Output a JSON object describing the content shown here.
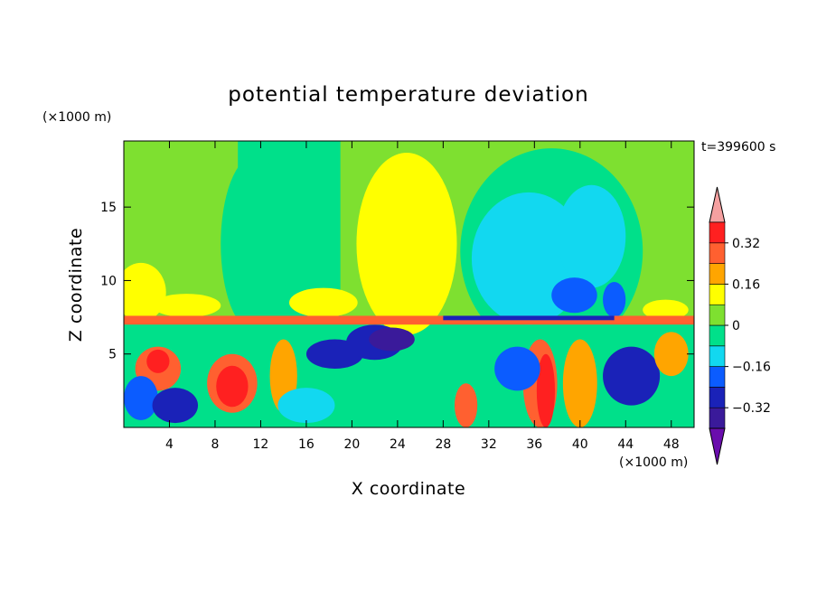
{
  "chart_data": {
    "type": "heatmap",
    "title": "potential temperature deviation",
    "xlabel": "X coordinate",
    "ylabel": "Z coordinate",
    "x_units": "(×1000 m)",
    "y_units": "(×1000 m)",
    "time_label": "t=399600 s",
    "xlim": [
      0,
      50
    ],
    "ylim": [
      0,
      19.5
    ],
    "x_ticks": [
      4,
      8,
      12,
      16,
      20,
      24,
      28,
      32,
      36,
      40,
      44,
      48
    ],
    "y_ticks": [
      5,
      10,
      15
    ],
    "colorbar": {
      "labels": [
        "0.32",
        "0.16",
        "0",
        "−0.16",
        "−0.32"
      ],
      "label_values": [
        0.32,
        0.16,
        0,
        -0.16,
        -0.32
      ],
      "levels": [
        -0.4,
        -0.32,
        -0.24,
        -0.16,
        -0.08,
        0,
        0.08,
        0.16,
        0.24,
        0.32,
        0.4
      ],
      "colors": [
        "#6a0dad",
        "#3a1a9a",
        "#1a22b8",
        "#0b5cff",
        "#12d8f0",
        "#00e08a",
        "#7ee030",
        "#ffff00",
        "#ffa500",
        "#ff6030",
        "#ff2020",
        "#f5a0a0"
      ]
    },
    "fields": {
      "upper_regions": [
        {
          "x": [
            0,
            10
          ],
          "z": [
            7.5,
            19.5
          ],
          "value": 0.04
        },
        {
          "x": [
            10,
            19
          ],
          "z": [
            7.5,
            19.5
          ],
          "value": -0.04
        },
        {
          "x": [
            19,
            30
          ],
          "z": [
            7.5,
            19.5
          ],
          "value": 0.04
        },
        {
          "x": [
            30,
            50
          ],
          "z": [
            7.5,
            19.5
          ],
          "value": 0.04
        }
      ],
      "blobs": [
        {
          "x": 1.5,
          "z": 9.2,
          "rx": 2.2,
          "rz": 2.0,
          "value": 0.12
        },
        {
          "x": 5.5,
          "z": 8.3,
          "rx": 3.0,
          "rz": 0.8,
          "value": 0.12
        },
        {
          "x": 11.5,
          "z": 12.5,
          "rx": 3.0,
          "rz": 6.0,
          "value": -0.04
        },
        {
          "x": 24.8,
          "z": 12.5,
          "rx": 4.4,
          "rz": 6.2,
          "value": 0.12
        },
        {
          "x": 17.5,
          "z": 8.5,
          "rx": 3.0,
          "rz": 1.0,
          "value": 0.12
        },
        {
          "x": 37.5,
          "z": 12.0,
          "rx": 8.0,
          "rz": 7.0,
          "value": -0.04
        },
        {
          "x": 35.5,
          "z": 11.5,
          "rx": 5.0,
          "rz": 4.5,
          "value": -0.12
        },
        {
          "x": 41.0,
          "z": 13.0,
          "rx": 3.0,
          "rz": 3.5,
          "value": -0.12
        },
        {
          "x": 39.5,
          "z": 9.0,
          "rx": 2.0,
          "rz": 1.2,
          "value": -0.2
        },
        {
          "x": 43.0,
          "z": 8.7,
          "rx": 1.0,
          "rz": 1.2,
          "value": -0.2
        },
        {
          "x": 47.5,
          "z": 8.0,
          "rx": 2.0,
          "rz": 0.7,
          "value": 0.12
        },
        {
          "x": 9.5,
          "z": 3.0,
          "rx": 2.2,
          "rz": 2.0,
          "value": 0.28
        },
        {
          "x": 9.5,
          "z": 2.8,
          "rx": 1.4,
          "rz": 1.4,
          "value": 0.36
        },
        {
          "x": 3.0,
          "z": 4.0,
          "rx": 2.0,
          "rz": 1.5,
          "value": 0.28
        },
        {
          "x": 3.0,
          "z": 4.5,
          "rx": 1.0,
          "rz": 0.8,
          "value": 0.36
        },
        {
          "x": 14.0,
          "z": 3.5,
          "rx": 1.2,
          "rz": 2.5,
          "value": 0.2
        },
        {
          "x": 18.5,
          "z": 5.0,
          "rx": 2.5,
          "rz": 1.0,
          "value": -0.28
        },
        {
          "x": 22.0,
          "z": 5.8,
          "rx": 2.5,
          "rz": 1.2,
          "value": -0.28
        },
        {
          "x": 23.5,
          "z": 6.0,
          "rx": 2.0,
          "rz": 0.8,
          "value": -0.36
        },
        {
          "x": 30.0,
          "z": 1.5,
          "rx": 1.0,
          "rz": 1.5,
          "value": 0.28
        },
        {
          "x": 36.5,
          "z": 3.0,
          "rx": 1.5,
          "rz": 3.0,
          "value": 0.28
        },
        {
          "x": 37.0,
          "z": 2.5,
          "rx": 0.8,
          "rz": 2.5,
          "value": 0.36
        },
        {
          "x": 40.0,
          "z": 3.0,
          "rx": 1.5,
          "rz": 3.0,
          "value": 0.2
        },
        {
          "x": 44.5,
          "z": 3.5,
          "rx": 2.5,
          "rz": 2.0,
          "value": -0.28
        },
        {
          "x": 34.5,
          "z": 4.0,
          "rx": 2.0,
          "rz": 1.5,
          "value": -0.2
        },
        {
          "x": 1.5,
          "z": 2.0,
          "rx": 1.5,
          "rz": 1.5,
          "value": -0.2
        },
        {
          "x": 4.5,
          "z": 1.5,
          "rx": 2.0,
          "rz": 1.2,
          "value": -0.28
        },
        {
          "x": 48.0,
          "z": 5.0,
          "rx": 1.5,
          "rz": 1.5,
          "value": 0.2
        },
        {
          "x": 26.0,
          "z": 2.0,
          "rx": 2.0,
          "rz": 1.5,
          "value": -0.04
        },
        {
          "x": 16.0,
          "z": 1.5,
          "rx": 2.5,
          "rz": 1.2,
          "value": -0.12
        }
      ],
      "tropopause_band": {
        "x": [
          0,
          50
        ],
        "z": [
          7.0,
          7.6
        ],
        "value": 0.28
      },
      "dark_band": {
        "x": [
          28,
          43
        ],
        "z": [
          7.3,
          7.6
        ],
        "value": -0.28
      }
    }
  }
}
